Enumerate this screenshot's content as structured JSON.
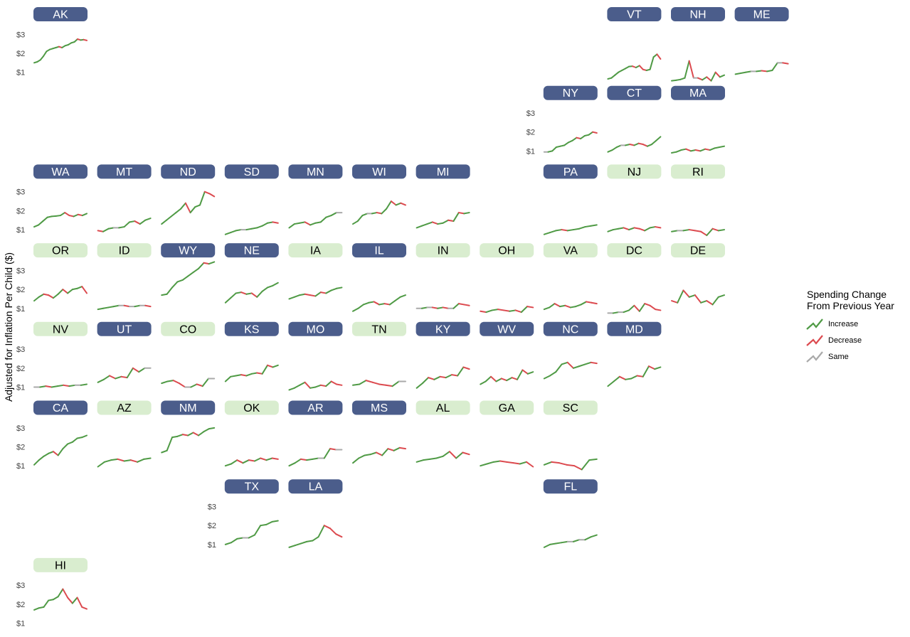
{
  "chart_data": {
    "type": "line",
    "title": "",
    "xlabel": "",
    "ylabel": "Adjusted for Inflation Per Child ($)",
    "yticks": [
      "$1",
      "$2",
      "$3"
    ],
    "ylim": [
      0.5,
      3.5
    ],
    "legend": {
      "position": "right",
      "title_lines": [
        "Spending Change",
        "From Previous Year"
      ],
      "items": [
        {
          "label": "Increase",
          "color": "#4f9a45"
        },
        {
          "label": "Decrease",
          "color": "#dc4a4f"
        },
        {
          "label": "Same",
          "color": "#a9a9a9"
        }
      ]
    },
    "label_styles": {
      "dark": {
        "fill": "#4b5d8b",
        "text": "#ffffff"
      },
      "light": {
        "fill": "#d9edcf",
        "text": "#000000"
      }
    },
    "states": [
      {
        "code": "AK",
        "col": 0,
        "row": 0,
        "style": "dark",
        "values": [
          1.5,
          1.55,
          1.65,
          1.85,
          2.1,
          2.2,
          2.25,
          2.3,
          2.35,
          2.3,
          2.4,
          2.45,
          2.55,
          2.6,
          2.75,
          2.7,
          2.72,
          2.68
        ]
      },
      {
        "code": "VT",
        "col": 9,
        "row": 0,
        "style": "dark",
        "values": [
          0.65,
          0.7,
          0.85,
          1.0,
          1.1,
          1.2,
          1.3,
          1.32,
          1.25,
          1.35,
          1.15,
          1.1,
          1.15,
          1.8,
          1.95,
          1.7
        ]
      },
      {
        "code": "NH",
        "col": 10,
        "row": 0,
        "style": "dark",
        "values": [
          0.55,
          0.58,
          0.62,
          0.7,
          1.6,
          0.7,
          0.7,
          0.6,
          0.75,
          0.55,
          1.0,
          0.75,
          0.85
        ]
      },
      {
        "code": "ME",
        "col": 11,
        "row": 0,
        "style": "dark",
        "values": [
          0.9,
          0.95,
          1.0,
          1.05,
          1.05,
          1.08,
          1.05,
          1.1,
          1.5,
          1.5,
          1.45
        ]
      },
      {
        "code": "NY",
        "col": 8,
        "row": 1,
        "style": "dark",
        "values": [
          0.95,
          0.95,
          1.0,
          1.2,
          1.25,
          1.3,
          1.45,
          1.55,
          1.7,
          1.65,
          1.8,
          1.85,
          2.0,
          1.95
        ]
      },
      {
        "code": "CT",
        "col": 9,
        "row": 1,
        "style": "dark",
        "values": [
          0.95,
          1.05,
          1.2,
          1.3,
          1.3,
          1.35,
          1.3,
          1.4,
          1.35,
          1.25,
          1.35,
          1.55,
          1.75
        ]
      },
      {
        "code": "MA",
        "col": 10,
        "row": 1,
        "style": "dark",
        "values": [
          0.9,
          0.95,
          1.05,
          1.1,
          1.0,
          1.05,
          1.0,
          1.1,
          1.05,
          1.15,
          1.2,
          1.25
        ]
      },
      {
        "code": "WA",
        "col": 0,
        "row": 2,
        "style": "dark",
        "values": [
          1.15,
          1.25,
          1.45,
          1.65,
          1.7,
          1.72,
          1.75,
          1.9,
          1.75,
          1.7,
          1.8,
          1.75,
          1.85
        ]
      },
      {
        "code": "MT",
        "col": 1,
        "row": 2,
        "style": "dark",
        "values": [
          0.95,
          0.9,
          1.05,
          1.1,
          1.1,
          1.15,
          1.4,
          1.45,
          1.3,
          1.5,
          1.6
        ]
      },
      {
        "code": "ND",
        "col": 2,
        "row": 2,
        "style": "dark",
        "values": [
          1.3,
          1.5,
          1.7,
          1.9,
          2.1,
          2.4,
          1.9,
          2.2,
          2.3,
          3.0,
          2.9,
          2.75
        ]
      },
      {
        "code": "SD",
        "col": 3,
        "row": 2,
        "style": "dark",
        "values": [
          0.75,
          0.85,
          0.95,
          1.0,
          1.0,
          1.05,
          1.1,
          1.2,
          1.35,
          1.4,
          1.35
        ]
      },
      {
        "code": "MN",
        "col": 4,
        "row": 2,
        "style": "dark",
        "values": [
          1.1,
          1.3,
          1.35,
          1.4,
          1.25,
          1.35,
          1.4,
          1.65,
          1.75,
          1.9,
          1.9
        ]
      },
      {
        "code": "WI",
        "col": 5,
        "row": 2,
        "style": "dark",
        "values": [
          1.3,
          1.45,
          1.75,
          1.85,
          1.85,
          1.9,
          1.85,
          2.1,
          2.5,
          2.3,
          2.4,
          2.3
        ]
      },
      {
        "code": "MI",
        "col": 6,
        "row": 2,
        "style": "dark",
        "values": [
          1.1,
          1.2,
          1.3,
          1.4,
          1.3,
          1.35,
          1.5,
          1.45,
          1.9,
          1.85,
          1.9
        ]
      },
      {
        "code": "PA",
        "col": 8,
        "row": 2,
        "style": "dark",
        "values": [
          0.75,
          0.85,
          0.95,
          1.0,
          0.95,
          1.0,
          1.05,
          1.15,
          1.2,
          1.25
        ]
      },
      {
        "code": "NJ",
        "col": 9,
        "row": 2,
        "style": "light",
        "values": [
          0.9,
          1.0,
          1.05,
          1.1,
          1.0,
          1.1,
          1.05,
          0.95,
          1.1,
          1.15,
          1.1
        ]
      },
      {
        "code": "RI",
        "col": 10,
        "row": 2,
        "style": "light",
        "values": [
          0.9,
          0.95,
          0.95,
          1.0,
          0.95,
          0.9,
          0.7,
          1.05,
          0.95,
          1.0
        ]
      },
      {
        "code": "OR",
        "col": 0,
        "row": 3,
        "style": "light",
        "values": [
          1.4,
          1.6,
          1.75,
          1.7,
          1.55,
          1.75,
          2.0,
          1.8,
          2.0,
          2.05,
          2.15,
          1.8
        ]
      },
      {
        "code": "ID",
        "col": 1,
        "row": 3,
        "style": "light",
        "values": [
          0.95,
          1.0,
          1.05,
          1.1,
          1.15,
          1.15,
          1.1,
          1.1,
          1.15,
          1.15,
          1.1
        ]
      },
      {
        "code": "WY",
        "col": 2,
        "row": 3,
        "style": "dark",
        "values": [
          1.7,
          1.75,
          2.1,
          2.4,
          2.5,
          2.7,
          2.9,
          3.1,
          3.4,
          3.35,
          3.45
        ]
      },
      {
        "code": "NE",
        "col": 3,
        "row": 3,
        "style": "dark",
        "values": [
          1.3,
          1.55,
          1.8,
          1.85,
          1.75,
          1.8,
          1.6,
          1.9,
          2.1,
          2.2,
          2.35
        ]
      },
      {
        "code": "IA",
        "col": 4,
        "row": 3,
        "style": "light",
        "values": [
          1.5,
          1.6,
          1.7,
          1.75,
          1.7,
          1.65,
          1.85,
          1.8,
          1.95,
          2.05,
          2.1
        ]
      },
      {
        "code": "IL",
        "col": 5,
        "row": 3,
        "style": "dark",
        "values": [
          0.85,
          1.0,
          1.2,
          1.3,
          1.35,
          1.2,
          1.25,
          1.2,
          1.4,
          1.6,
          1.7
        ]
      },
      {
        "code": "IN",
        "col": 6,
        "row": 3,
        "style": "light",
        "values": [
          1.0,
          1.0,
          1.05,
          1.05,
          1.0,
          1.05,
          1.0,
          1.0,
          1.25,
          1.2,
          1.15
        ]
      },
      {
        "code": "OH",
        "col": 7,
        "row": 3,
        "style": "light",
        "values": [
          0.85,
          0.8,
          0.9,
          0.95,
          0.9,
          0.85,
          0.9,
          0.8,
          1.1,
          1.05
        ]
      },
      {
        "code": "VA",
        "col": 8,
        "row": 3,
        "style": "light",
        "values": [
          0.95,
          1.05,
          1.25,
          1.1,
          1.15,
          1.05,
          1.1,
          1.2,
          1.35,
          1.3,
          1.25
        ]
      },
      {
        "code": "DC",
        "col": 9,
        "row": 3,
        "style": "light",
        "values": [
          0.75,
          0.75,
          0.8,
          0.8,
          0.9,
          1.15,
          0.85,
          1.25,
          1.15,
          0.95,
          0.9
        ]
      },
      {
        "code": "DE",
        "col": 10,
        "row": 3,
        "style": "light",
        "values": [
          1.4,
          1.3,
          1.95,
          1.6,
          1.7,
          1.3,
          1.4,
          1.2,
          1.6,
          1.7
        ]
      },
      {
        "code": "NV",
        "col": 0,
        "row": 4,
        "style": "light",
        "values": [
          1.0,
          1.0,
          1.05,
          1.0,
          1.05,
          1.1,
          1.05,
          1.1,
          1.1,
          1.15
        ]
      },
      {
        "code": "UT",
        "col": 1,
        "row": 4,
        "style": "dark",
        "values": [
          1.25,
          1.4,
          1.6,
          1.45,
          1.55,
          1.5,
          2.0,
          1.8,
          2.0,
          2.0
        ]
      },
      {
        "code": "CO",
        "col": 2,
        "row": 4,
        "style": "light",
        "values": [
          1.2,
          1.3,
          1.35,
          1.2,
          1.0,
          1.0,
          1.15,
          1.05,
          1.45,
          1.45
        ]
      },
      {
        "code": "KS",
        "col": 3,
        "row": 4,
        "style": "dark",
        "values": [
          1.3,
          1.55,
          1.6,
          1.65,
          1.6,
          1.7,
          1.75,
          1.7,
          2.15,
          2.05,
          2.15
        ]
      },
      {
        "code": "MO",
        "col": 4,
        "row": 4,
        "style": "dark",
        "values": [
          0.85,
          0.95,
          1.1,
          1.25,
          0.95,
          1.0,
          1.1,
          1.05,
          1.3,
          1.15,
          1.1
        ]
      },
      {
        "code": "TN",
        "col": 5,
        "row": 4,
        "style": "light",
        "values": [
          1.1,
          1.15,
          1.35,
          1.25,
          1.15,
          1.1,
          1.05,
          1.3,
          1.3
        ]
      },
      {
        "code": "KY",
        "col": 6,
        "row": 4,
        "style": "dark",
        "values": [
          0.95,
          1.2,
          1.5,
          1.4,
          1.55,
          1.5,
          1.65,
          1.6,
          2.05,
          1.95
        ]
      },
      {
        "code": "WV",
        "col": 7,
        "row": 4,
        "style": "dark",
        "values": [
          1.15,
          1.3,
          1.55,
          1.3,
          1.45,
          1.35,
          1.5,
          1.4,
          1.9,
          1.7,
          1.8
        ]
      },
      {
        "code": "NC",
        "col": 8,
        "row": 4,
        "style": "dark",
        "values": [
          1.45,
          1.6,
          1.8,
          2.2,
          2.3,
          2.0,
          2.1,
          2.2,
          2.3,
          2.25
        ]
      },
      {
        "code": "MD",
        "col": 9,
        "row": 4,
        "style": "dark",
        "values": [
          1.05,
          1.3,
          1.55,
          1.4,
          1.45,
          1.6,
          1.55,
          2.1,
          1.95,
          2.05
        ]
      },
      {
        "code": "CA",
        "col": 0,
        "row": 5,
        "style": "dark",
        "values": [
          1.05,
          1.3,
          1.5,
          1.65,
          1.75,
          1.55,
          1.9,
          2.15,
          2.25,
          2.45,
          2.5,
          2.6
        ]
      },
      {
        "code": "AZ",
        "col": 1,
        "row": 5,
        "style": "light",
        "values": [
          0.95,
          1.2,
          1.3,
          1.35,
          1.25,
          1.3,
          1.2,
          1.35,
          1.4
        ]
      },
      {
        "code": "NM",
        "col": 2,
        "row": 5,
        "style": "dark",
        "values": [
          1.7,
          1.8,
          2.5,
          2.55,
          2.65,
          2.6,
          2.75,
          2.6,
          2.8,
          2.95,
          3.0
        ]
      },
      {
        "code": "OK",
        "col": 3,
        "row": 5,
        "style": "light",
        "values": [
          1.0,
          1.1,
          1.3,
          1.15,
          1.3,
          1.25,
          1.4,
          1.3,
          1.4,
          1.35
        ]
      },
      {
        "code": "AR",
        "col": 4,
        "row": 5,
        "style": "dark",
        "values": [
          1.0,
          1.15,
          1.35,
          1.3,
          1.35,
          1.4,
          1.4,
          1.9,
          1.85,
          1.85
        ]
      },
      {
        "code": "MS",
        "col": 5,
        "row": 5,
        "style": "dark",
        "values": [
          1.15,
          1.4,
          1.55,
          1.6,
          1.7,
          1.55,
          1.9,
          1.8,
          1.95,
          1.9
        ]
      },
      {
        "code": "AL",
        "col": 6,
        "row": 5,
        "style": "light",
        "values": [
          1.2,
          1.3,
          1.35,
          1.4,
          1.5,
          1.75,
          1.4,
          1.7,
          1.6
        ]
      },
      {
        "code": "GA",
        "col": 7,
        "row": 5,
        "style": "light",
        "values": [
          1.0,
          1.1,
          1.2,
          1.25,
          1.2,
          1.15,
          1.1,
          1.2,
          0.95
        ]
      },
      {
        "code": "SC",
        "col": 8,
        "row": 5,
        "style": "light",
        "values": [
          1.05,
          1.2,
          1.15,
          1.05,
          1.0,
          0.8,
          1.3,
          1.35
        ]
      },
      {
        "code": "TX",
        "col": 3,
        "row": 6,
        "style": "dark",
        "values": [
          1.0,
          1.1,
          1.3,
          1.35,
          1.35,
          1.5,
          2.0,
          2.05,
          2.2,
          2.25
        ]
      },
      {
        "code": "LA",
        "col": 4,
        "row": 6,
        "style": "dark",
        "values": [
          0.85,
          0.95,
          1.05,
          1.15,
          1.2,
          1.4,
          2.0,
          1.85,
          1.55,
          1.4
        ]
      },
      {
        "code": "FL",
        "col": 8,
        "row": 6,
        "style": "dark",
        "values": [
          0.85,
          1.0,
          1.05,
          1.1,
          1.15,
          1.15,
          1.25,
          1.25,
          1.4,
          1.5
        ]
      },
      {
        "code": "HI",
        "col": 0,
        "row": 7,
        "style": "light",
        "values": [
          1.7,
          1.8,
          1.85,
          2.2,
          2.25,
          2.4,
          2.8,
          2.35,
          2.05,
          2.35,
          1.85,
          1.75
        ]
      }
    ]
  }
}
